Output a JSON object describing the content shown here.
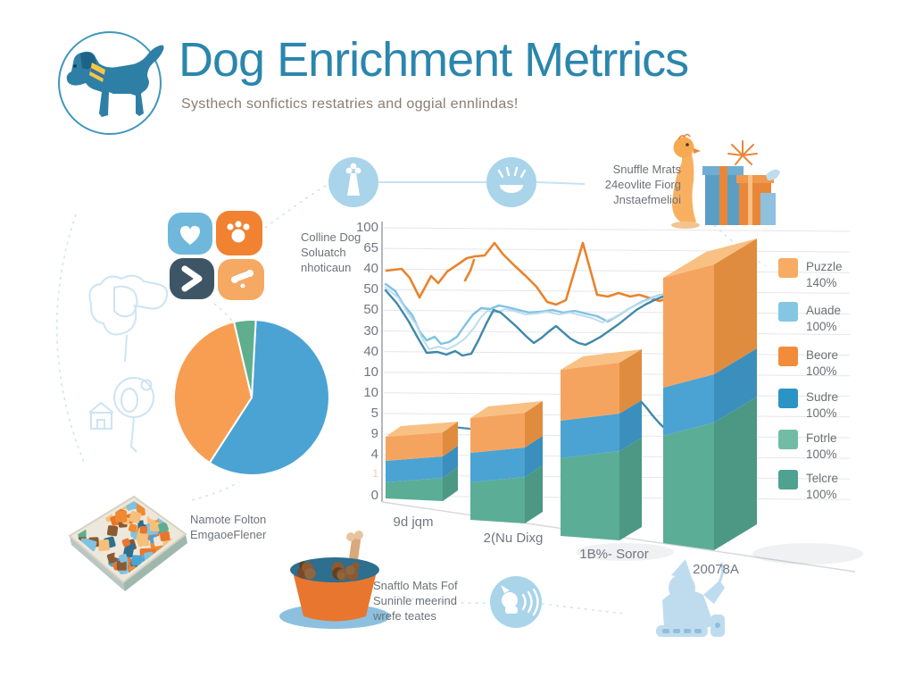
{
  "header": {
    "title": "Dog Enrichment Metrrics",
    "subtitle": "Systhech sonfictics restatries and oggial ennlindas!"
  },
  "annotations": {
    "quadrant_lines": [
      "Colline Dog",
      "Soluatch",
      "nhoticaun"
    ],
    "gifts_lines": [
      "Snuffle Mrats",
      "24eovlite Fiorg",
      "Jnstaefmelioi"
    ],
    "mat_lines": [
      "Namote Folton",
      "EmgaoeFlener"
    ],
    "bowl_lines": [
      "Snaftlo Mats Fof",
      "Suninle meerind",
      "wrefe teates"
    ]
  },
  "legend": {
    "items": [
      {
        "label": "Puzzle",
        "value": "140%",
        "color": "#F6AC63"
      },
      {
        "label": "Auade",
        "value": "100%",
        "color": "#85C6E3"
      },
      {
        "label": "Beore",
        "value": "100%",
        "color": "#F28C3B"
      },
      {
        "label": "Sudre",
        "value": "100%",
        "color": "#2C94C4"
      },
      {
        "label": "Fotrle",
        "value": "100%",
        "color": "#72BCA5"
      },
      {
        "label": "Telcre",
        "value": "100%",
        "color": "#4FA28F"
      }
    ]
  },
  "colors": {
    "title": "#2b86ad",
    "pie_blue": "#4BA3D3",
    "pie_orange": "#F79E52",
    "pie_green": "#5FAE8E",
    "icon_blue": "#A9D4EA",
    "sketch_blue": "#C8E2F2",
    "text_gray": "#6e7278"
  },
  "chart_data": [
    {
      "type": "pie",
      "title": "",
      "start_angle_deg": 3,
      "slices": [
        {
          "label": "blue-slice",
          "value": 58.3,
          "color": "#4BA3D3"
        },
        {
          "label": "orange-slice",
          "value": 37.2,
          "color": "#F79E52"
        },
        {
          "label": "green-slice",
          "value": 4.5,
          "color": "#5FAE8E"
        }
      ]
    },
    {
      "type": "bar",
      "subtype": "3d-stacked-with-lines",
      "categories": [
        "9d jqm",
        "2(Nu Dixg",
        "1B%- Soror",
        "20078A"
      ],
      "y_tick_labels": [
        "100",
        "65",
        "40",
        "50",
        "50",
        "30",
        "40",
        "10",
        "10",
        "5",
        "9",
        "4",
        "1",
        "0"
      ],
      "series": [
        {
          "name": "green-bottom",
          "values": [
            6,
            14,
            29,
            40
          ],
          "front": "#5BAD96",
          "side": "#4C9884",
          "top": "#74BFA9"
        },
        {
          "name": "blue-middle",
          "values": [
            8,
            11,
            14,
            18
          ],
          "front": "#4BA3D3",
          "side": "#3B8FBD",
          "top": "#6BB5DC"
        },
        {
          "name": "orange-top",
          "values": [
            9,
            13,
            19,
            41
          ],
          "front": "#F5A45F",
          "side": "#E08C3E",
          "top": "#F9C084"
        }
      ],
      "line_series": [
        {
          "name": "orange-line",
          "color": "#E8842C",
          "width": 2.6,
          "points": [
            [
              433,
              303
            ],
            [
              450,
              301
            ],
            [
              459,
              311
            ],
            [
              470,
              333
            ],
            [
              483,
              309
            ],
            [
              491,
              317
            ],
            [
              501,
              304
            ],
            [
              513,
              296
            ],
            [
              523,
              289
            ],
            [
              532,
              287
            ],
            [
              543,
              286
            ],
            [
              554,
              272
            ],
            [
              563,
              284
            ],
            [
              576,
              297
            ],
            [
              589,
              309
            ],
            [
              601,
              321
            ],
            [
              613,
              338
            ],
            [
              623,
              341
            ],
            [
              634,
              336
            ],
            [
              645,
              299
            ],
            [
              653,
              272
            ],
            [
              661,
              301
            ],
            [
              669,
              330
            ],
            [
              681,
              332
            ],
            [
              693,
              328
            ],
            [
              706,
              332
            ],
            [
              716,
              330
            ],
            [
              729,
              334
            ],
            [
              739,
              337
            ],
            [
              751,
              333
            ],
            [
              759,
              329
            ]
          ]
        },
        {
          "name": "orange-stub",
          "color": "#E8842C",
          "width": 2.6,
          "points": [
            [
              521,
              314
            ],
            [
              527,
              303
            ],
            [
              531,
              291
            ]
          ]
        },
        {
          "name": "light-blue-line",
          "color": "#7FC2E2",
          "width": 2.4,
          "points": [
            [
              432,
              318
            ],
            [
              443,
              326
            ],
            [
              452,
              341
            ],
            [
              462,
              353
            ],
            [
              470,
              371
            ],
            [
              478,
              381
            ],
            [
              487,
              377
            ],
            [
              494,
              385
            ],
            [
              503,
              383
            ],
            [
              512,
              377
            ],
            [
              521,
              364
            ],
            [
              530,
              352
            ],
            [
              539,
              345
            ],
            [
              549,
              346
            ],
            [
              559,
              342
            ],
            [
              569,
              344
            ],
            [
              581,
              347
            ],
            [
              593,
              350
            ],
            [
              606,
              349
            ],
            [
              619,
              347
            ],
            [
              631,
              350
            ],
            [
              644,
              348
            ],
            [
              656,
              351
            ],
            [
              669,
              354
            ],
            [
              681,
              360
            ],
            [
              693,
              353
            ],
            [
              704,
              346
            ],
            [
              715,
              340
            ],
            [
              726,
              335
            ],
            [
              737,
              331
            ],
            [
              749,
              328
            ],
            [
              759,
              327
            ]
          ]
        },
        {
          "name": "pale-blue-line",
          "color": "#BBDDEE",
          "width": 2,
          "points": [
            [
              432,
              322
            ],
            [
              446,
              333
            ],
            [
              456,
              349
            ],
            [
              466,
              363
            ],
            [
              473,
              379
            ],
            [
              481,
              391
            ],
            [
              491,
              388
            ],
            [
              501,
              391
            ],
            [
              511,
              386
            ],
            [
              521,
              379
            ],
            [
              531,
              367
            ],
            [
              539,
              355
            ],
            [
              546,
              348
            ],
            [
              556,
              350
            ],
            [
              566,
              346
            ],
            [
              576,
              348
            ],
            [
              589,
              352
            ],
            [
              601,
              351
            ],
            [
              613,
              349
            ],
            [
              626,
              352
            ],
            [
              639,
              350
            ],
            [
              651,
              353
            ],
            [
              663,
              356
            ],
            [
              675,
              361
            ],
            [
              687,
              356
            ],
            [
              699,
              349
            ],
            [
              711,
              342
            ],
            [
              723,
              337
            ],
            [
              735,
              332
            ],
            [
              747,
              329
            ]
          ]
        },
        {
          "name": "teal-line",
          "color": "#3F88AA",
          "width": 2.4,
          "points": [
            [
              432,
              325
            ],
            [
              445,
              340
            ],
            [
              458,
              360
            ],
            [
              468,
              378
            ],
            [
              478,
              395
            ],
            [
              490,
              394
            ],
            [
              500,
              397
            ],
            [
              510,
              393
            ],
            [
              518,
              398
            ],
            [
              528,
              396
            ],
            [
              536,
              381
            ],
            [
              545,
              362
            ],
            [
              553,
              347
            ],
            [
              561,
              350
            ],
            [
              569,
              357
            ],
            [
              579,
              366
            ],
            [
              589,
              376
            ],
            [
              598,
              384
            ],
            [
              607,
              378
            ],
            [
              615,
              371
            ],
            [
              623,
              365
            ],
            [
              631,
              372
            ],
            [
              639,
              379
            ],
            [
              648,
              384
            ],
            [
              656,
              386
            ],
            [
              664,
              382
            ],
            [
              673,
              377
            ],
            [
              683,
              370
            ],
            [
              693,
              363
            ],
            [
              703,
              355
            ],
            [
              713,
              347
            ],
            [
              723,
              341
            ],
            [
              733,
              336
            ],
            [
              743,
              332
            ],
            [
              753,
              329
            ],
            [
              763,
              330
            ],
            [
              773,
              334
            ],
            [
              781,
              339
            ],
            [
              789,
              345
            ],
            [
              797,
              352
            ]
          ]
        },
        {
          "name": "teal-line-descent",
          "color": "#3F88AA",
          "width": 2.4,
          "points": [
            [
              716,
              447
            ],
            [
              724,
              456
            ],
            [
              731,
              465
            ],
            [
              738,
              473
            ],
            [
              743,
              478
            ]
          ]
        },
        {
          "name": "blue-dash",
          "color": "#4B8BB0",
          "width": 2.2,
          "points": [
            [
              497,
              477
            ],
            [
              526,
              480
            ]
          ]
        }
      ]
    }
  ]
}
